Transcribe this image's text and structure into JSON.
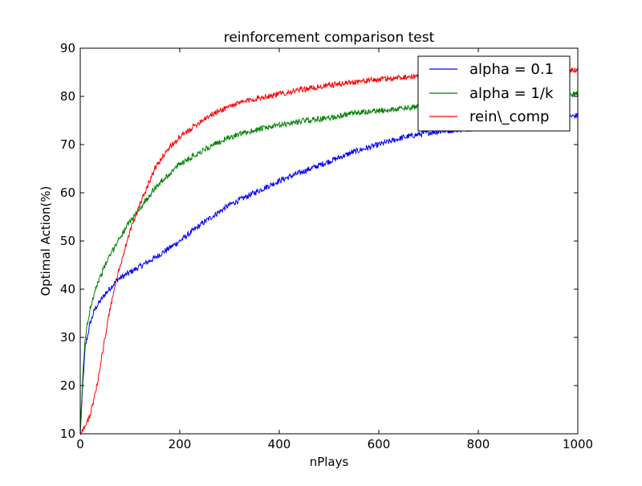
{
  "chart_data": {
    "type": "line",
    "title": "reinforcement comparison test",
    "xlabel": "nPlays",
    "ylabel": "Optimal Action(%)",
    "xlim": [
      0,
      1000
    ],
    "ylim": [
      10,
      90
    ],
    "xticks": [
      0,
      200,
      400,
      600,
      800,
      1000
    ],
    "yticks": [
      10,
      20,
      30,
      40,
      50,
      60,
      70,
      80,
      90
    ],
    "xtick_labels": [
      "0",
      "200",
      "400",
      "600",
      "800",
      "1000"
    ],
    "ytick_labels": [
      "10",
      "20",
      "30",
      "40",
      "50",
      "60",
      "70",
      "80",
      "90"
    ],
    "grid": false,
    "legend_position": "top-right",
    "series": [
      {
        "name": "alpha = 0.1",
        "color": "#0000ff",
        "noise": 0.6,
        "x": [
          0,
          5,
          10,
          20,
          30,
          50,
          75,
          100,
          150,
          200,
          250,
          300,
          350,
          400,
          450,
          500,
          550,
          600,
          650,
          700,
          750,
          800,
          850,
          900,
          950,
          1000
        ],
        "y": [
          10,
          20,
          28,
          33,
          36,
          39,
          42,
          43.5,
          46.5,
          50,
          54,
          57.5,
          60,
          62.5,
          64.5,
          66.5,
          68.5,
          70,
          71.5,
          72.5,
          73,
          73.5,
          74.3,
          75,
          75.5,
          76
        ]
      },
      {
        "name": "alpha = 1/k",
        "color": "#008000",
        "noise": 0.6,
        "x": [
          0,
          5,
          10,
          20,
          30,
          50,
          75,
          100,
          150,
          200,
          250,
          300,
          350,
          400,
          450,
          500,
          550,
          600,
          650,
          700,
          750,
          800,
          850,
          900,
          950,
          1000
        ],
        "y": [
          10,
          22,
          30,
          36,
          40,
          45,
          50,
          54,
          61,
          66,
          69,
          71.5,
          73,
          74,
          75,
          75.5,
          76.5,
          77,
          77.5,
          78,
          78.5,
          79,
          79.3,
          79.6,
          80,
          80.5
        ]
      },
      {
        "name": "rein\\_comp",
        "color": "#ff0000",
        "noise": 0.6,
        "x": [
          0,
          5,
          10,
          20,
          30,
          40,
          50,
          60,
          75,
          100,
          125,
          150,
          175,
          200,
          250,
          300,
          350,
          400,
          450,
          500,
          550,
          600,
          650,
          700,
          750,
          800,
          850,
          900,
          950,
          1000
        ],
        "y": [
          10,
          11,
          11.5,
          14,
          18,
          24,
          30,
          36,
          43,
          52,
          59,
          65,
          69,
          71.5,
          75.5,
          78,
          79.5,
          80.5,
          81.5,
          82.3,
          83,
          83.5,
          84,
          84.3,
          84.5,
          84.7,
          84.9,
          85.1,
          85.3,
          85.5
        ]
      }
    ]
  }
}
